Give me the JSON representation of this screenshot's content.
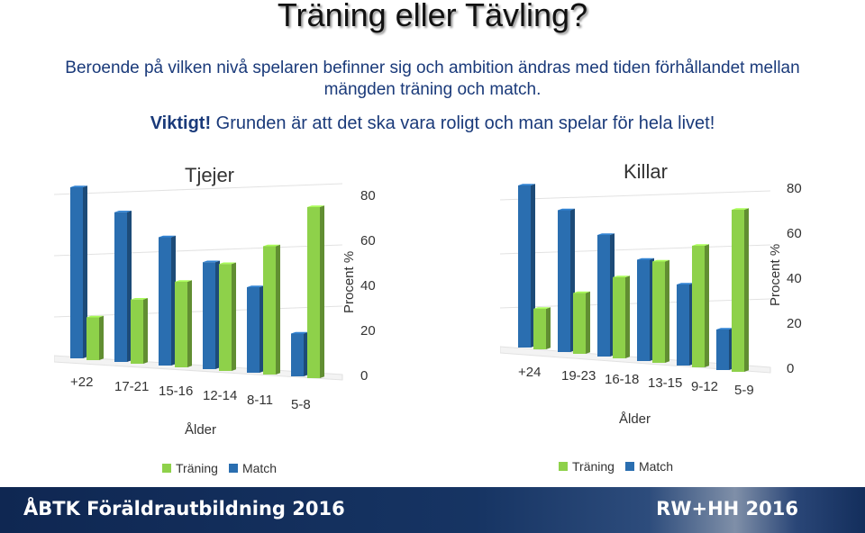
{
  "title": "Träning eller Tävling?",
  "intro": "Beroende på vilken nivå spelaren befinner sig och ambition ändras med tiden förhållandet mellan mängden träning och match.",
  "note": {
    "strong": "Viktigt!",
    "text": " Grunden är att det ska vara roligt och man spelar för hela livet!"
  },
  "colors": {
    "training": "#8ed14a",
    "match": "#2a6eb0"
  },
  "chart_data": [
    {
      "type": "bar",
      "title": "Tjejer",
      "xlabel": "Ålder",
      "ylabel": "Procent %",
      "categories": [
        "+22",
        "17-21",
        "15-16",
        "12-14",
        "8-11",
        "5-8"
      ],
      "series": [
        {
          "name": "Träning",
          "values": [
            20,
            30,
            40,
            50,
            60,
            80
          ]
        },
        {
          "name": "Match",
          "values": [
            80,
            70,
            60,
            50,
            40,
            20
          ]
        }
      ],
      "yticks": [
        "0",
        "20",
        "40",
        "60",
        "80"
      ],
      "ylim": [
        0,
        80
      ],
      "legend": [
        "Träning",
        "Match"
      ]
    },
    {
      "type": "bar",
      "title": "Killar",
      "xlabel": "Ålder",
      "ylabel": "Procent %",
      "categories": [
        "+24",
        "19-23",
        "16-18",
        "13-15",
        "9-12",
        "5-9"
      ],
      "series": [
        {
          "name": "Träning",
          "values": [
            20,
            30,
            40,
            50,
            60,
            80
          ]
        },
        {
          "name": "Match",
          "values": [
            80,
            70,
            60,
            50,
            40,
            20
          ]
        }
      ],
      "yticks": [
        "0",
        "20",
        "40",
        "60",
        "80"
      ],
      "ylim": [
        0,
        80
      ],
      "legend": [
        "Träning",
        "Match"
      ]
    }
  ],
  "footer": {
    "left": "ÅBTK Föräldrautbildning 2016",
    "right": "RW+HH 2016"
  }
}
